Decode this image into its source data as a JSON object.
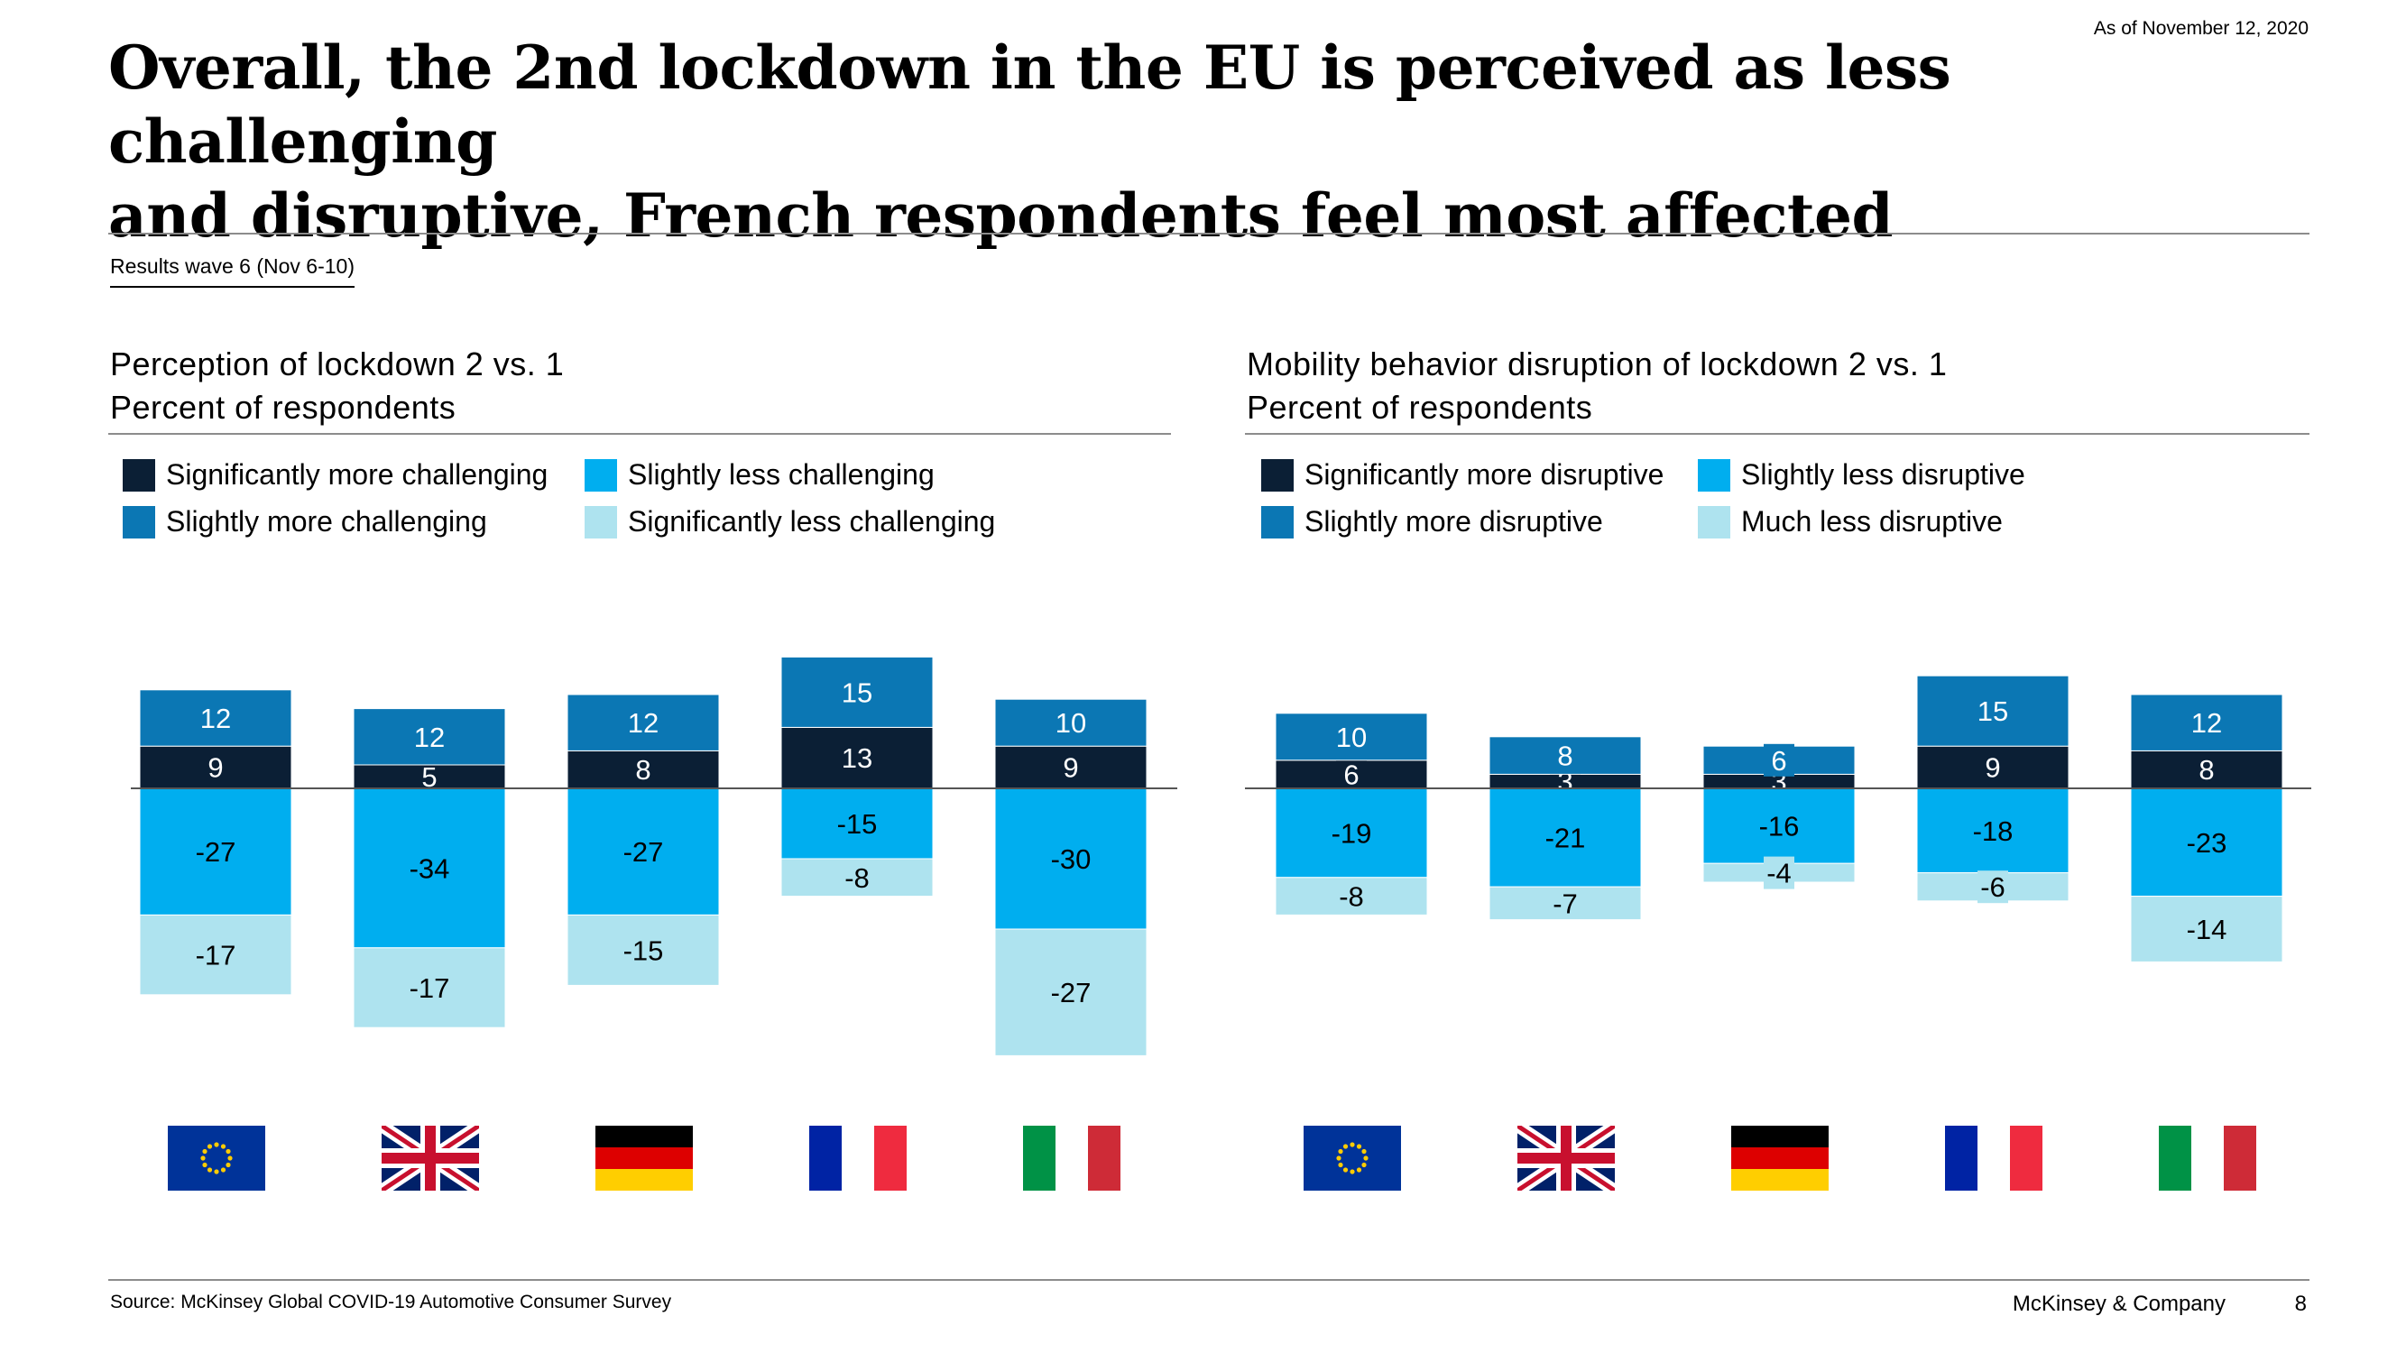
{
  "header": {
    "as_of": "As of November 12, 2020",
    "title_line1": "Overall, the 2nd lockdown in the EU is perceived as less challenging",
    "title_line2": "and disruptive, French respondents feel most affected",
    "wave": "Results wave 6 (Nov 6-10)"
  },
  "footer": {
    "source": "Source: McKinsey Global COVID-19 Automotive Consumer Survey",
    "company": "McKinsey & Company",
    "page": "8"
  },
  "colors": {
    "dark": "#0b1f35",
    "mid": "#0b77b4",
    "bright": "#00aeef",
    "light": "#aee3ef"
  },
  "flags": [
    "EU",
    "UK",
    "Germany",
    "France",
    "Italy"
  ],
  "chart_data": [
    {
      "type": "bar",
      "stacked": "diverging",
      "title": "Perception of lockdown 2 vs. 1",
      "subtitle": "Percent of respondents",
      "categories": [
        "EU",
        "UK",
        "Germany",
        "France",
        "Italy"
      ],
      "legend": [
        "Significantly more challenging",
        "Slightly more challenging",
        "Slightly less challenging",
        "Significantly less challenging"
      ],
      "series": [
        {
          "name": "Significantly more challenging",
          "values": [
            9,
            5,
            8,
            13,
            9
          ],
          "color": "#0b1f35"
        },
        {
          "name": "Slightly more challenging",
          "values": [
            12,
            12,
            12,
            15,
            10
          ],
          "color": "#0b77b4"
        },
        {
          "name": "Slightly less challenging",
          "values": [
            -27,
            -34,
            -27,
            -15,
            -30
          ],
          "color": "#00aeef"
        },
        {
          "name": "Significantly less challenging",
          "values": [
            -17,
            -17,
            -15,
            -8,
            -27
          ],
          "color": "#aee3ef"
        }
      ]
    },
    {
      "type": "bar",
      "stacked": "diverging",
      "title": "Mobility behavior disruption of lockdown 2 vs. 1",
      "subtitle": "Percent of respondents",
      "categories": [
        "EU",
        "UK",
        "Germany",
        "France",
        "Italy"
      ],
      "legend": [
        "Significantly more disruptive",
        "Slightly more disruptive",
        "Slightly less disruptive",
        "Much less disruptive"
      ],
      "series": [
        {
          "name": "Significantly more disruptive",
          "values": [
            6,
            3,
            3,
            9,
            8
          ],
          "color": "#0b1f35"
        },
        {
          "name": "Slightly more disruptive",
          "values": [
            10,
            8,
            6,
            15,
            12
          ],
          "color": "#0b77b4"
        },
        {
          "name": "Slightly less disruptive",
          "values": [
            -19,
            -21,
            -16,
            -18,
            -23
          ],
          "color": "#00aeef"
        },
        {
          "name": "Much less disruptive",
          "values": [
            -8,
            -7,
            -4,
            -6,
            -14
          ],
          "color": "#aee3ef"
        }
      ]
    }
  ]
}
